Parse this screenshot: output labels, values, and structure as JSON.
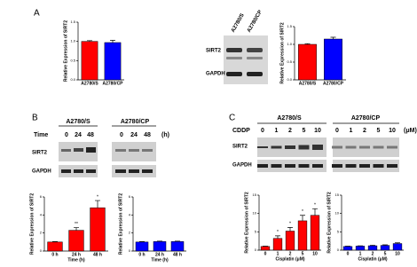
{
  "panels": [
    "A",
    "B",
    "C"
  ],
  "blots": [
    {
      "lanes": [
        "A2780/S",
        "A2780/CP"
      ],
      "rows": [
        "SIRT2",
        "GAPDH"
      ]
    },
    {
      "groups": [
        "A2780/S",
        "A2780/CP"
      ],
      "axis_label": "Time",
      "lanes": [
        "0",
        "24",
        "48",
        "0",
        "24",
        "48"
      ],
      "unit": "(h)",
      "rows": [
        "SIRT2",
        "GAPDH"
      ]
    },
    {
      "groups": [
        "A2780/S",
        "A2780/CP"
      ],
      "axis_label": "CDDP",
      "lanes": [
        "0",
        "1",
        "2",
        "5",
        "10",
        "0",
        "1",
        "2",
        "5",
        "10"
      ],
      "unit": "(μM)",
      "rows": [
        "SIRT2",
        "GAPDH"
      ]
    }
  ],
  "chart_data": [
    {
      "type": "bar",
      "ylabel": "Relative Expression of SIRT2",
      "categories": [
        "A2780/S",
        "A2780/CP"
      ],
      "values": [
        1.0,
        0.97
      ],
      "errors": [
        0.02,
        0.06
      ],
      "colors": [
        "#ff0000",
        "#0000ff"
      ],
      "ylim": [
        0,
        1.5
      ],
      "yticks": [
        {
          "value": 0,
          "label": "0.0"
        },
        {
          "value": 0.5,
          "label": "0.5"
        },
        {
          "value": 1,
          "label": "1.0"
        },
        {
          "value": 1.5,
          "label": "1.5"
        }
      ]
    },
    {
      "type": "bar",
      "ylabel": "Relative Expression of SIRT2",
      "categories": [
        "A2780/S",
        "A2780/CP"
      ],
      "values": [
        1.0,
        1.15
      ],
      "errors": [
        0.02,
        0.05
      ],
      "colors": [
        "#ff0000",
        "#0000ff"
      ],
      "ylim": [
        0,
        1.5
      ],
      "yticks": [
        {
          "value": 0,
          "label": "0.0"
        },
        {
          "value": 0.5,
          "label": "0.5"
        },
        {
          "value": 1,
          "label": "1.0"
        },
        {
          "value": 1.5,
          "label": "1.5"
        }
      ]
    },
    {
      "type": "bar",
      "ylabel": "Relative Expression of SIRT2",
      "xlabel": "Time (h)",
      "categories": [
        "0 h",
        "24 h",
        "48 h"
      ],
      "values": [
        1.0,
        2.3,
        4.8
      ],
      "errors": [
        0.05,
        0.3,
        0.8
      ],
      "annotations": [
        null,
        "**",
        "*"
      ],
      "color": "#ff0000",
      "ylim": [
        0,
        6
      ],
      "yticks": [
        0,
        2,
        4,
        6
      ]
    },
    {
      "type": "bar",
      "ylabel": "Relative Expression of SIRT2",
      "xlabel": "Time (h)",
      "categories": [
        "0 h",
        "24 h",
        "48 h"
      ],
      "values": [
        1.0,
        1.05,
        1.05
      ],
      "errors": [
        0.05,
        0.05,
        0.05
      ],
      "color": "#0000ff",
      "ylim": [
        0,
        6
      ],
      "yticks": [
        0,
        2,
        4,
        6
      ]
    },
    {
      "type": "bar",
      "ylabel": "Relative Expression of SIRT2",
      "xlabel": "Cisplatin (μM)",
      "categories": [
        "0",
        "1",
        "2",
        "5",
        "10"
      ],
      "values": [
        1.0,
        3.2,
        5.2,
        8.0,
        9.5
      ],
      "errors": [
        0.1,
        0.7,
        1.0,
        1.5,
        1.8
      ],
      "annotations": [
        null,
        "*",
        "*",
        "*",
        "*"
      ],
      "color": "#ff0000",
      "ylim": [
        0,
        15
      ],
      "yticks": [
        0,
        5,
        10,
        15
      ]
    },
    {
      "type": "bar",
      "ylabel": "Relative Expression of SIRT2",
      "xlabel": "Cisplatin (μM)",
      "categories": [
        "0",
        "1",
        "2",
        "5",
        "10"
      ],
      "values": [
        1.0,
        1.1,
        1.2,
        1.3,
        1.8
      ],
      "errors": [
        0.1,
        0.1,
        0.15,
        0.15,
        0.2
      ],
      "color": "#0000ff",
      "ylim": [
        0,
        15
      ],
      "yticks": [
        0,
        5,
        10,
        15
      ]
    }
  ]
}
